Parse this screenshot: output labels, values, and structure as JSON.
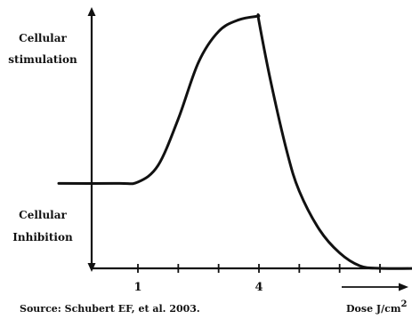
{
  "chart_data": {
    "type": "line",
    "y_labels": {
      "top": [
        "Cellular",
        "stimulation"
      ],
      "bottom": [
        "Cellular",
        "Inhibition"
      ]
    },
    "xlabel": "Dose J/cm",
    "xlabel_superscript": "2",
    "source": "Source: Schubert EF, et al. 2003.",
    "x_ticks": [
      {
        "value": 1,
        "label": "1"
      },
      {
        "value": 2,
        "label": ""
      },
      {
        "value": 3,
        "label": ""
      },
      {
        "value": 4,
        "label": "4"
      },
      {
        "value": 5,
        "label": ""
      },
      {
        "value": 6,
        "label": ""
      },
      {
        "value": 7,
        "label": ""
      }
    ],
    "xlim": [
      0.25,
      8.5
    ],
    "ylim": [
      0,
      1
    ],
    "grid": false,
    "legend": "none",
    "series": [
      {
        "values": [
          {
            "x": 0.0,
            "y": 0.33
          },
          {
            "x": 0.5,
            "y": 0.33
          },
          {
            "x": 1.0,
            "y": 0.335
          },
          {
            "x": 1.5,
            "y": 0.4
          },
          {
            "x": 2.0,
            "y": 0.58
          },
          {
            "x": 2.5,
            "y": 0.8
          },
          {
            "x": 3.0,
            "y": 0.92
          },
          {
            "x": 3.5,
            "y": 0.965
          },
          {
            "x": 4.0,
            "y": 0.98
          },
          {
            "x": 4.0,
            "y": 0.96
          },
          {
            "x": 4.3,
            "y": 0.72
          },
          {
            "x": 4.7,
            "y": 0.45
          },
          {
            "x": 5.0,
            "y": 0.3
          },
          {
            "x": 5.5,
            "y": 0.15
          },
          {
            "x": 6.0,
            "y": 0.06
          },
          {
            "x": 6.5,
            "y": 0.01
          },
          {
            "x": 7.0,
            "y": 0.0
          },
          {
            "x": 8.0,
            "y": 0.0
          }
        ]
      }
    ]
  }
}
